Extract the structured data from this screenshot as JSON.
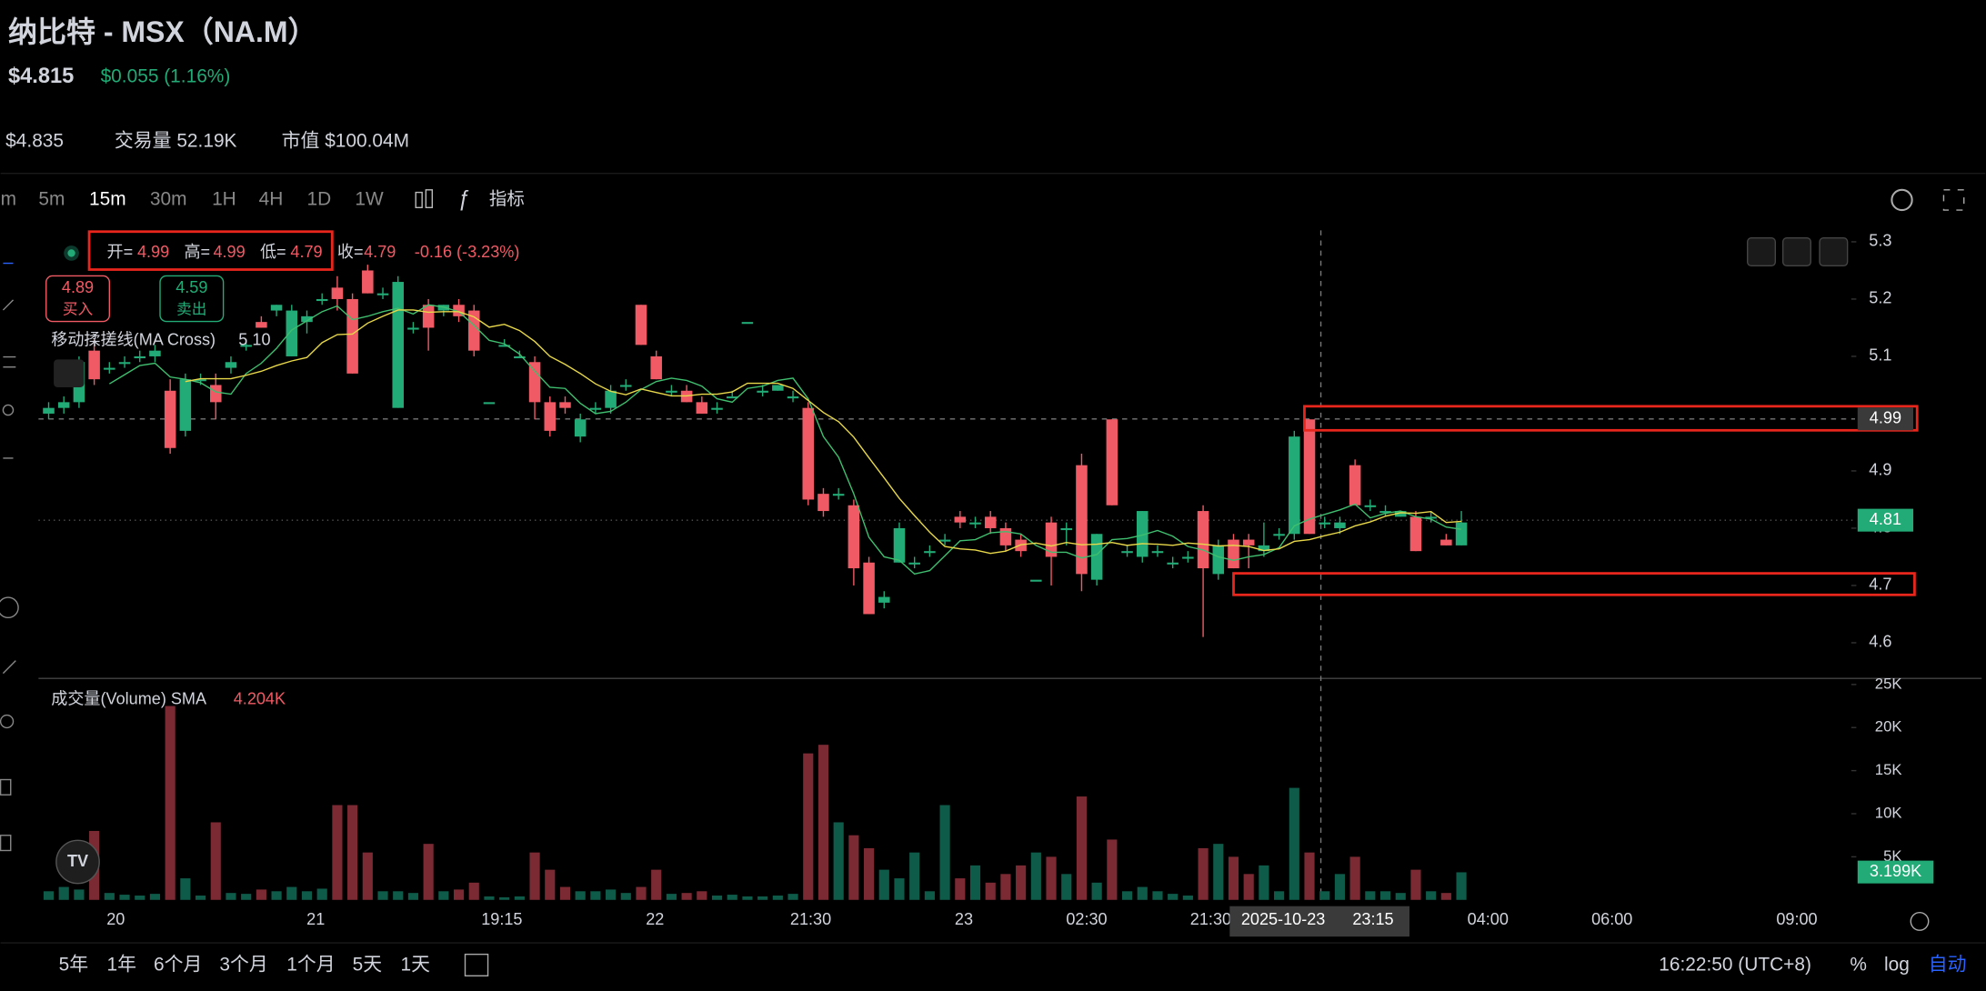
{
  "header": {
    "title": "纳比特 - MSX（NA.M）",
    "price": "$4.815",
    "change": "$0.055 (1.16%)",
    "stats": [
      "$4.835",
      "交易量 52.19K",
      "市值 $100.04M"
    ]
  },
  "toolbar": {
    "intervals": [
      "m",
      "5m",
      "15m",
      "30m",
      "1H",
      "4H",
      "1D",
      "1W"
    ],
    "indicators": "指标"
  },
  "legend": {
    "items": [
      [
        "开=",
        "4.99"
      ],
      [
        "高=",
        "4.99"
      ],
      [
        "低=",
        "4.79"
      ],
      [
        "收=",
        "4.79"
      ]
    ],
    "change": "-0.16 (-3.23%)"
  },
  "orders": {
    "buy": {
      "price": "4.89",
      "label": "买入"
    },
    "sell": {
      "price": "4.59",
      "label": "卖出"
    }
  },
  "indicator": {
    "name": "移动揉搓线(MA Cross)",
    "params": "5 10"
  },
  "volume_indicator": {
    "name": "成交量(Volume) SMA",
    "value": "4.204K"
  },
  "chart": {
    "type": "candlestick",
    "ylim": [
      4.54,
      5.32
    ],
    "yticks": [
      4.6,
      4.7,
      4.8,
      4.9,
      5.1,
      5.2,
      5.3
    ],
    "volume_ylim": [
      0,
      26000
    ],
    "volume_yticks": [
      {
        "value": 5000,
        "label": "5K"
      },
      {
        "value": 10000,
        "label": "10K"
      },
      {
        "value": 15000,
        "label": "15K"
      },
      {
        "value": 20000,
        "label": "20K"
      },
      {
        "value": 25000,
        "label": "25K"
      }
    ],
    "xlabels": [
      "20",
      "21",
      "19:15",
      "22",
      "21:30",
      "23",
      "02:30",
      "21:30",
      "04:00",
      "06:00",
      "09:00"
    ],
    "crosshair": [
      "2025-10-23",
      "23:15"
    ],
    "price_labels": {
      "high": "4.99",
      "last": "4.81",
      "volume": "3.199K"
    },
    "candles": [
      [
        5.0,
        5.02,
        4.99,
        5.01,
        1000
      ],
      [
        5.01,
        5.03,
        5.0,
        5.02,
        1500
      ],
      [
        5.02,
        5.1,
        5.01,
        5.09,
        1200
      ],
      [
        5.11,
        5.13,
        5.05,
        5.06,
        8000
      ],
      [
        5.08,
        5.09,
        5.07,
        5.08,
        800
      ],
      [
        5.09,
        5.1,
        5.08,
        5.09,
        600
      ],
      [
        5.1,
        5.11,
        5.09,
        5.1,
        500
      ],
      [
        5.1,
        5.12,
        5.09,
        5.11,
        700
      ],
      [
        5.04,
        5.06,
        4.93,
        4.94,
        22500
      ],
      [
        4.97,
        5.07,
        4.96,
        5.06,
        2500
      ],
      [
        5.06,
        5.07,
        5.05,
        5.06,
        500
      ],
      [
        5.05,
        5.07,
        4.99,
        5.02,
        9000
      ],
      [
        5.08,
        5.1,
        5.07,
        5.09,
        800
      ],
      [
        5.12,
        5.13,
        5.11,
        5.12,
        700
      ],
      [
        5.16,
        5.17,
        5.15,
        5.15,
        1200
      ],
      [
        5.18,
        5.19,
        5.17,
        5.19,
        1000
      ],
      [
        5.1,
        5.19,
        5.1,
        5.18,
        1500
      ],
      [
        5.16,
        5.18,
        5.14,
        5.17,
        1000
      ],
      [
        5.2,
        5.21,
        5.19,
        5.2,
        1300
      ],
      [
        5.22,
        5.24,
        5.18,
        5.2,
        11000
      ],
      [
        5.2,
        5.21,
        5.07,
        5.07,
        11000
      ],
      [
        5.25,
        5.26,
        5.21,
        5.21,
        5500
      ],
      [
        5.21,
        5.22,
        5.2,
        5.21,
        1000
      ],
      [
        5.01,
        5.24,
        5.01,
        5.23,
        1000
      ],
      [
        5.15,
        5.16,
        5.14,
        5.15,
        800
      ],
      [
        5.19,
        5.2,
        5.11,
        5.15,
        6500
      ],
      [
        5.18,
        5.19,
        5.17,
        5.19,
        1000
      ],
      [
        5.19,
        5.2,
        5.16,
        5.17,
        1200
      ],
      [
        5.18,
        5.19,
        5.1,
        5.11,
        2000
      ],
      [
        5.02,
        5.02,
        5.02,
        5.02,
        400
      ],
      [
        5.12,
        5.13,
        5.12,
        5.12,
        300
      ],
      [
        5.1,
        5.11,
        5.1,
        5.1,
        400
      ],
      [
        5.09,
        5.1,
        4.99,
        5.02,
        5500
      ],
      [
        5.02,
        5.03,
        4.96,
        4.97,
        3500
      ],
      [
        5.02,
        5.03,
        5.0,
        5.01,
        1500
      ],
      [
        4.96,
        5.0,
        4.95,
        4.99,
        1000
      ],
      [
        5.01,
        5.02,
        5.0,
        5.01,
        1000
      ],
      [
        5.01,
        5.05,
        5.0,
        5.04,
        1200
      ],
      [
        5.05,
        5.06,
        5.04,
        5.05,
        800
      ],
      [
        5.19,
        5.19,
        5.12,
        5.12,
        1500
      ],
      [
        5.1,
        5.11,
        5.06,
        5.06,
        3500
      ],
      [
        5.04,
        5.05,
        5.03,
        5.04,
        700
      ],
      [
        5.04,
        5.05,
        5.02,
        5.02,
        800
      ],
      [
        5.02,
        5.03,
        5.0,
        5.0,
        1000
      ],
      [
        5.01,
        5.02,
        5.0,
        5.01,
        500
      ],
      [
        5.03,
        5.04,
        5.03,
        5.03,
        600
      ],
      [
        5.16,
        5.16,
        5.16,
        5.16,
        400
      ],
      [
        5.04,
        5.05,
        5.03,
        5.04,
        400
      ],
      [
        5.04,
        5.05,
        5.04,
        5.05,
        500
      ],
      [
        5.03,
        5.04,
        5.02,
        5.03,
        700
      ],
      [
        5.01,
        5.02,
        4.84,
        4.85,
        17000
      ],
      [
        4.86,
        4.87,
        4.82,
        4.83,
        18000
      ],
      [
        4.86,
        4.87,
        4.85,
        4.86,
        9000
      ],
      [
        4.84,
        4.85,
        4.7,
        4.73,
        7500
      ],
      [
        4.74,
        4.75,
        4.65,
        4.65,
        6000
      ],
      [
        4.67,
        4.69,
        4.66,
        4.68,
        3500
      ],
      [
        4.74,
        4.81,
        4.74,
        4.8,
        2500
      ],
      [
        4.74,
        4.75,
        4.73,
        4.74,
        5500
      ],
      [
        4.76,
        4.77,
        4.75,
        4.76,
        1000
      ],
      [
        4.78,
        4.79,
        4.77,
        4.78,
        11000
      ],
      [
        4.82,
        4.83,
        4.8,
        4.81,
        2500
      ],
      [
        4.81,
        4.82,
        4.8,
        4.81,
        4000
      ],
      [
        4.82,
        4.83,
        4.79,
        4.8,
        2000
      ],
      [
        4.8,
        4.81,
        4.76,
        4.77,
        3000
      ],
      [
        4.78,
        4.79,
        4.75,
        4.76,
        4000
      ],
      [
        4.71,
        4.71,
        4.71,
        4.71,
        5500
      ],
      [
        4.81,
        4.82,
        4.7,
        4.75,
        5000
      ],
      [
        4.8,
        4.81,
        4.77,
        4.8,
        3000
      ],
      [
        4.91,
        4.93,
        4.69,
        4.72,
        12000
      ],
      [
        4.71,
        4.79,
        4.7,
        4.79,
        2000
      ],
      [
        4.99,
        4.99,
        4.84,
        4.84,
        7000
      ],
      [
        4.76,
        4.77,
        4.75,
        4.76,
        1000
      ],
      [
        4.75,
        4.83,
        4.74,
        4.83,
        1500
      ],
      [
        4.76,
        4.77,
        4.75,
        4.76,
        1000
      ],
      [
        4.74,
        4.75,
        4.73,
        4.74,
        700
      ],
      [
        4.75,
        4.76,
        4.74,
        4.75,
        500
      ],
      [
        4.83,
        4.84,
        4.61,
        4.73,
        6000
      ],
      [
        4.72,
        4.78,
        4.71,
        4.77,
        6500
      ],
      [
        4.78,
        4.79,
        4.73,
        4.73,
        5000
      ],
      [
        4.78,
        4.79,
        4.73,
        4.77,
        3000
      ],
      [
        4.76,
        4.81,
        4.75,
        4.77,
        4000
      ],
      [
        4.79,
        4.8,
        4.78,
        4.79,
        1000
      ],
      [
        4.79,
        4.97,
        4.78,
        4.96,
        13000
      ],
      [
        4.99,
        4.99,
        4.79,
        4.79,
        5500
      ],
      [
        4.81,
        4.82,
        4.8,
        4.81,
        1000
      ],
      [
        4.8,
        4.82,
        4.79,
        4.81,
        3000
      ],
      [
        4.91,
        4.92,
        4.84,
        4.84,
        5000
      ],
      [
        4.84,
        4.85,
        4.83,
        4.84,
        1000
      ],
      [
        4.83,
        4.84,
        4.82,
        4.83,
        1000
      ],
      [
        4.82,
        4.83,
        4.82,
        4.83,
        800
      ],
      [
        4.82,
        4.83,
        4.76,
        4.76,
        3500
      ],
      [
        4.82,
        4.83,
        4.81,
        4.82,
        1000
      ],
      [
        4.78,
        4.79,
        4.77,
        4.77,
        800
      ],
      [
        4.77,
        4.83,
        4.77,
        4.81,
        3199
      ]
    ]
  },
  "ranges": [
    "5年",
    "1年",
    "6个月",
    "3个月",
    "1个月",
    "5天",
    "1天"
  ],
  "footer": {
    "time": "16:22:50 (UTC+8)",
    "percent": "%",
    "log": "log",
    "auto": "自动"
  }
}
